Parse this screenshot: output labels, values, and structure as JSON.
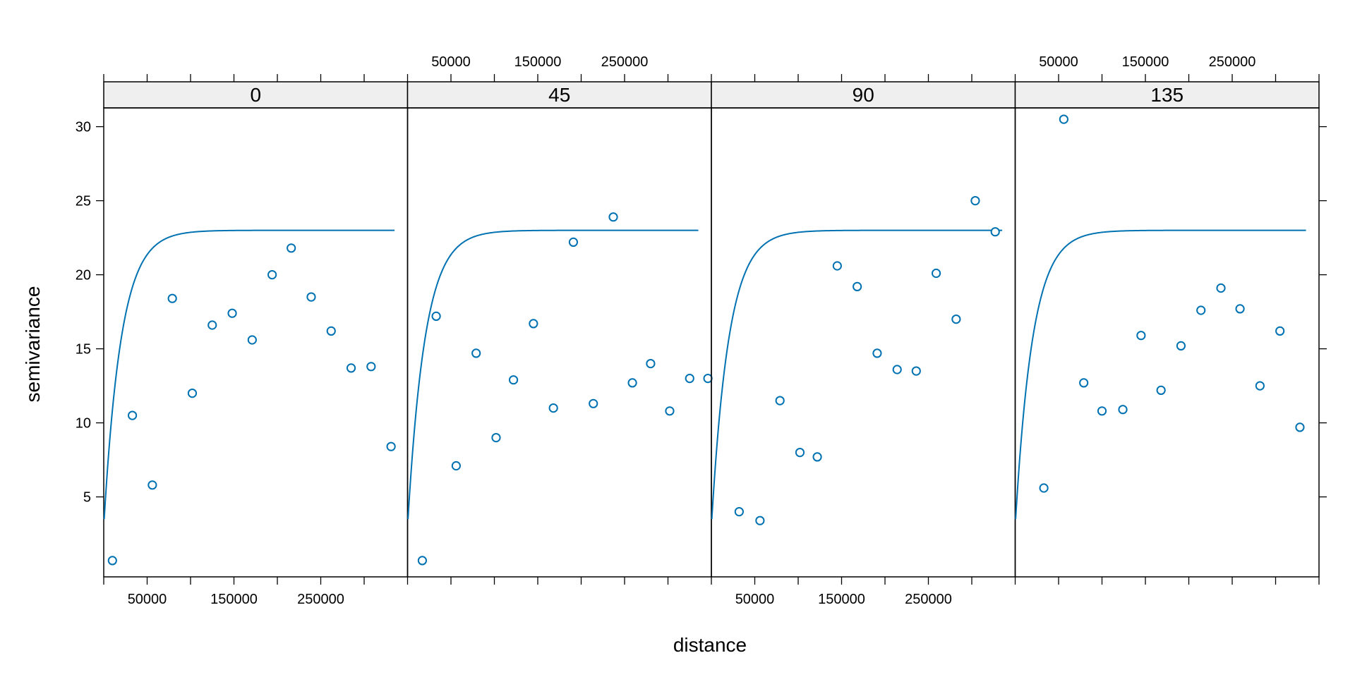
{
  "chart_data": {
    "type": "scatter",
    "xlabel": "distance",
    "ylabel": "semivariance",
    "xlim": [
      0,
      350000
    ],
    "ylim": [
      0,
      31.5
    ],
    "x_ticks": [
      0,
      50000,
      100000,
      150000,
      200000,
      250000,
      300000,
      350000
    ],
    "x_tick_labels": [
      "50000",
      "150000",
      "250000"
    ],
    "y_ticks": [
      5,
      10,
      15,
      20,
      25,
      30
    ],
    "y_tick_labels": [
      "5",
      "10",
      "15",
      "20",
      "25",
      "30"
    ],
    "grid": false,
    "colors": {
      "points": "#0072B2",
      "fit_line": "#0072B2",
      "strip_bg": "#EFEFEF",
      "frame": "#000000"
    },
    "fitted_model": {
      "nugget": 3,
      "sill": 23,
      "range": 20000,
      "x_end": 335000
    },
    "panels": [
      {
        "strip": "0",
        "x": [
          10000,
          33000,
          56000,
          79000,
          102000,
          125000,
          148000,
          171000,
          194000,
          216000,
          239000,
          262000,
          285000,
          308000,
          331000
        ],
        "y": [
          0.7,
          10.5,
          5.8,
          18.4,
          12.0,
          16.6,
          17.4,
          15.6,
          20.0,
          21.8,
          18.5,
          16.2,
          13.7,
          13.8,
          8.4
        ]
      },
      {
        "strip": "45",
        "x": [
          17000,
          33000,
          56000,
          79000,
          102000,
          122000,
          145000,
          168000,
          191000,
          214000,
          237000,
          259000,
          280000,
          302000,
          325000,
          346000
        ],
        "y": [
          0.7,
          17.2,
          7.1,
          14.7,
          9.0,
          12.9,
          16.7,
          11.0,
          22.2,
          11.3,
          23.9,
          12.7,
          14.0,
          10.8,
          13.0,
          13.0
        ]
      },
      {
        "strip": "90",
        "x": [
          32000,
          56000,
          79000,
          102000,
          122000,
          145000,
          168000,
          191000,
          214000,
          236000,
          259000,
          282000,
          304000,
          327000
        ],
        "y": [
          4.0,
          3.4,
          11.5,
          8.0,
          7.7,
          20.6,
          19.2,
          14.7,
          13.6,
          13.5,
          20.1,
          17.0,
          25.0,
          22.9
        ]
      },
      {
        "strip": "135",
        "x": [
          33000,
          56000,
          79000,
          100000,
          124000,
          145000,
          168000,
          191000,
          214000,
          237000,
          259000,
          282000,
          305000,
          328000
        ],
        "y": [
          5.6,
          30.5,
          12.7,
          10.8,
          10.9,
          15.9,
          12.2,
          15.2,
          17.6,
          19.1,
          17.7,
          12.5,
          16.2,
          9.7
        ]
      }
    ]
  }
}
